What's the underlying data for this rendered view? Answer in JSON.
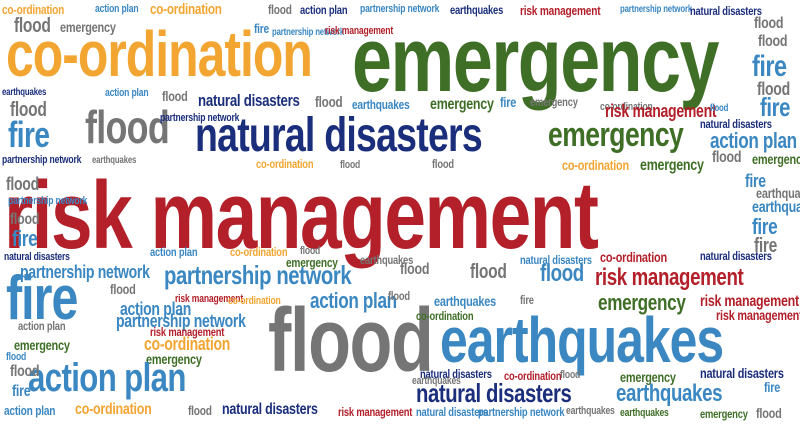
{
  "words": {
    "co_ordination": "co-ordination",
    "emergency": "emergency",
    "natural_disasters": "natural disasters",
    "risk_management": "risk management",
    "fire": "fire",
    "flood": "flood",
    "partnership_network": "partnership network",
    "action_plan": "action plan",
    "earthquakes": "earthquakes"
  },
  "colors": {
    "orange": "#f2a531",
    "green": "#3f6f27",
    "navy": "#1b2e7c",
    "red": "#b3202a",
    "blue": "#3a87c2",
    "gray": "#757575"
  }
}
